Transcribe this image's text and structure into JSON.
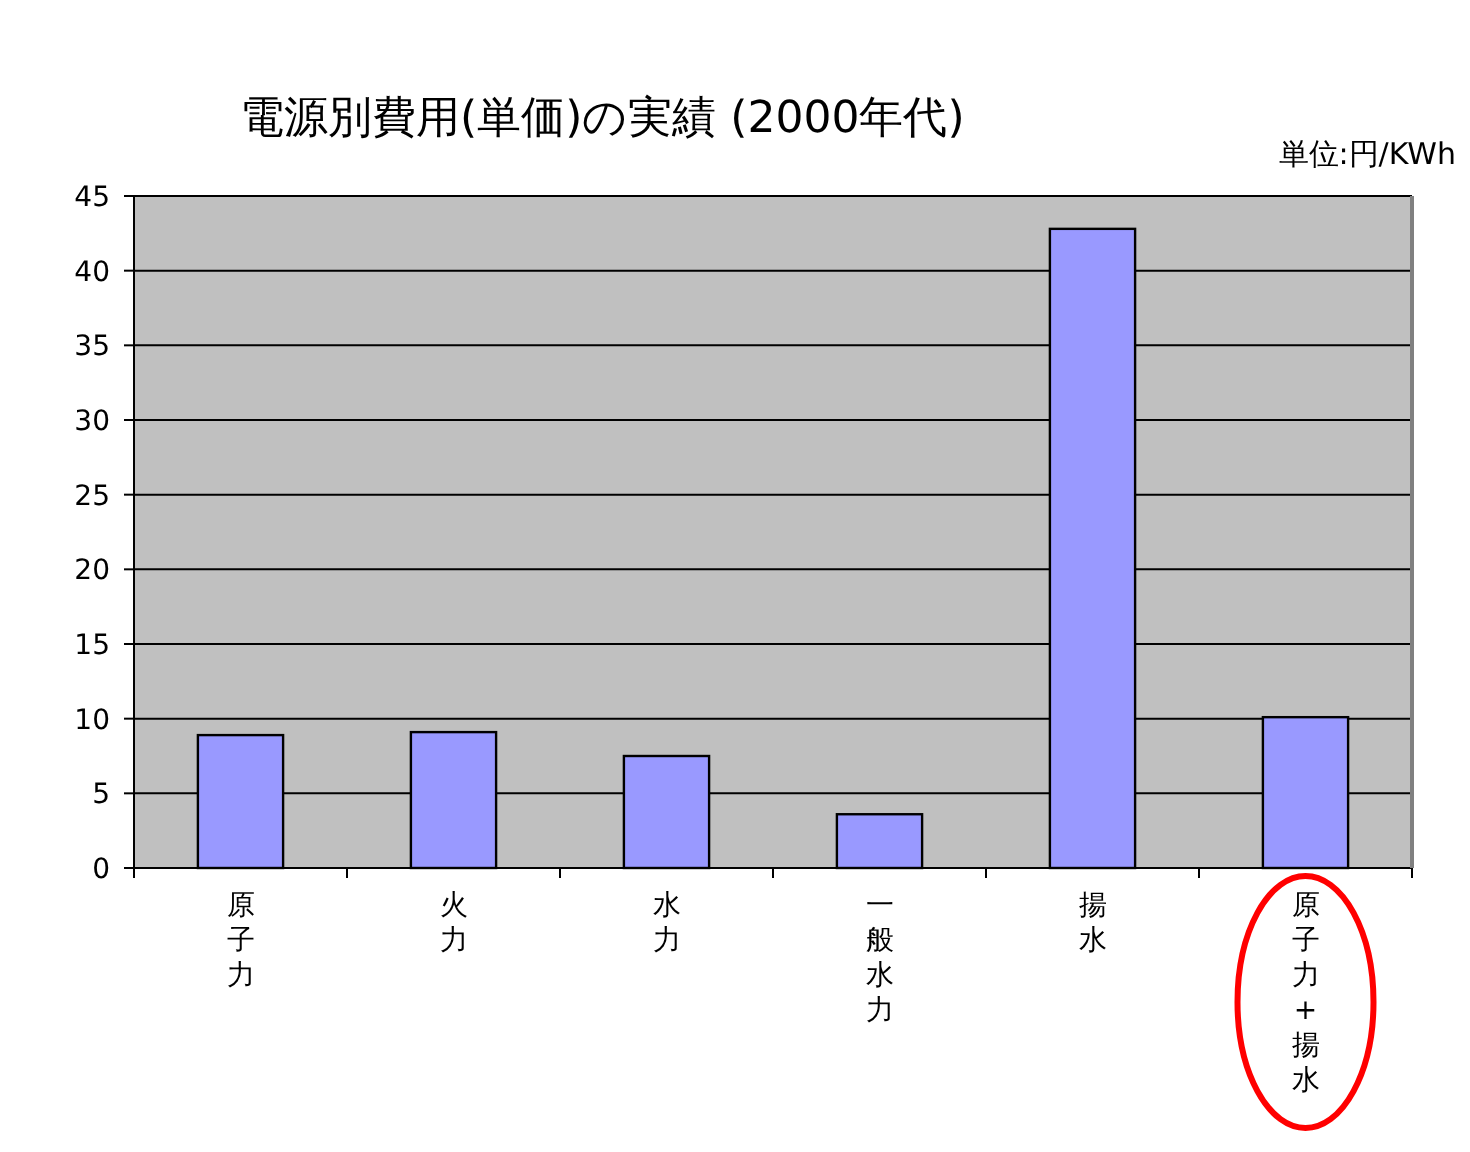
{
  "chart_data": {
    "type": "bar",
    "title": "電源別費用(単価)の実績 (2000年代)",
    "annotations": [
      "単位:円/KWh"
    ],
    "categories": [
      "原子力",
      "火力",
      "水力",
      "一般水力",
      "揚水",
      "原子力+揚水"
    ],
    "values": [
      8.9,
      9.1,
      7.5,
      3.6,
      42.8,
      10.1
    ],
    "color": "#9999ff",
    "ylim": [
      0,
      45
    ],
    "yticks": [
      0,
      5,
      10,
      15,
      20,
      25,
      30,
      35,
      40,
      45
    ],
    "grid": "y"
  }
}
